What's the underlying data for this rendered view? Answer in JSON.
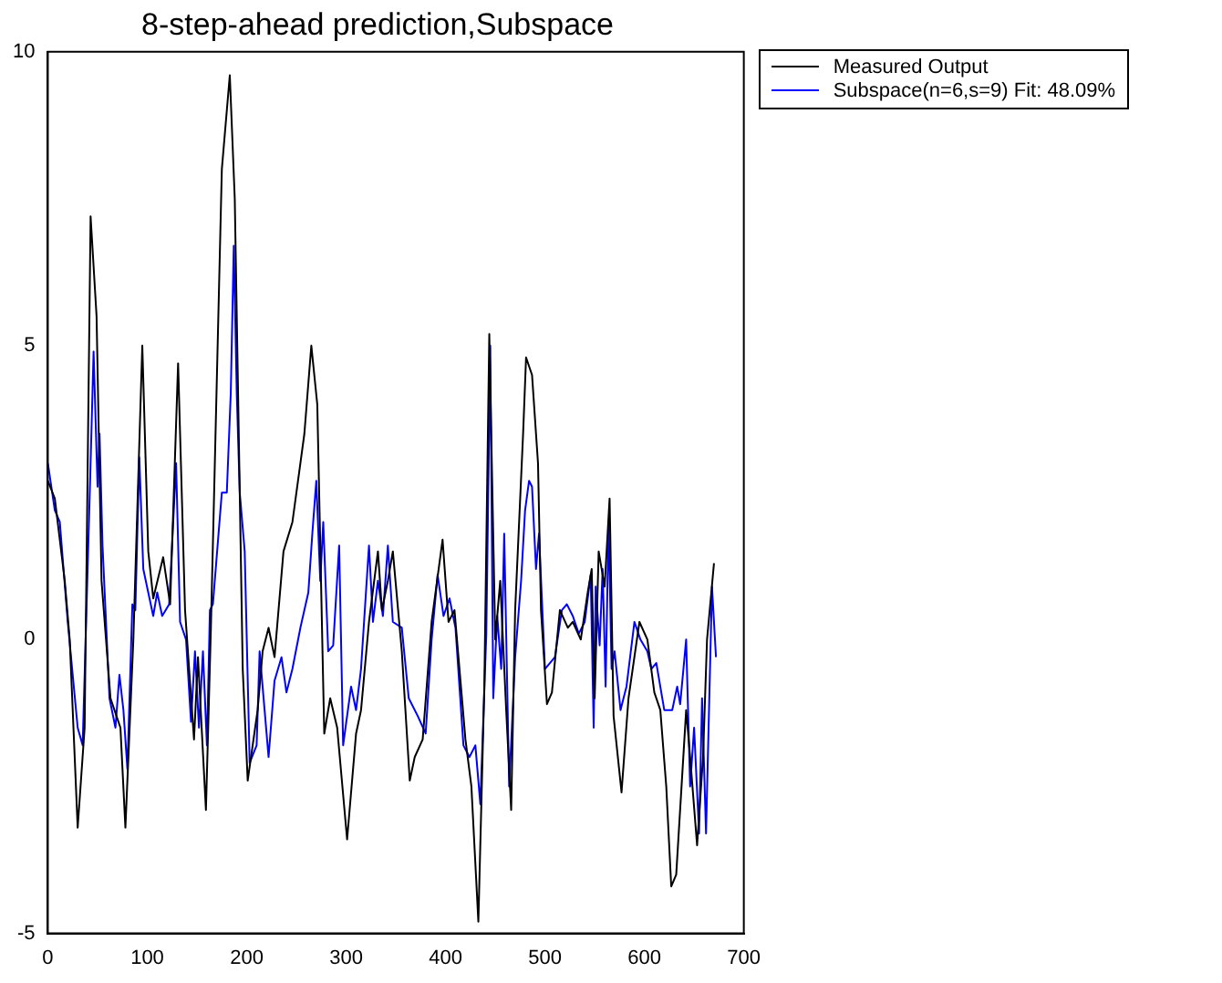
{
  "chart_data": {
    "type": "line",
    "title": "8-step-ahead prediction,Subspace",
    "xlim": [
      0,
      700
    ],
    "xticks": [
      0,
      100,
      200,
      300,
      400,
      500,
      600,
      700
    ],
    "ylim": [
      -5,
      10
    ],
    "yticks": [
      -5,
      0,
      5,
      10
    ],
    "grid": false,
    "legend": "top right",
    "marker": "none",
    "line_style": "solid",
    "series": [
      {
        "name": "Measured Output",
        "color": "#000000",
        "x": [
          0,
          7,
          17,
          22,
          30,
          37,
          43,
          49,
          54,
          63,
          69,
          73,
          78,
          86,
          95,
          101,
          106,
          116,
          123,
          131,
          138,
          147,
          151,
          159,
          164,
          175,
          183,
          188,
          196,
          201,
          211,
          216,
          222,
          228,
          237,
          246,
          258,
          265,
          271,
          278,
          284,
          291,
          301,
          310,
          315,
          323,
          332,
          336,
          342,
          347,
          356,
          364,
          369,
          377,
          386,
          397,
          403,
          409,
          420,
          426,
          433,
          439,
          444,
          450,
          455,
          461,
          466,
          470,
          478,
          481,
          487,
          493,
          496,
          502,
          507,
          515,
          523,
          528,
          536,
          543,
          547,
          550,
          554,
          560,
          565,
          569,
          577,
          584,
          595,
          603,
          610,
          616,
          622,
          627,
          632,
          642,
          646,
          653,
          659,
          663,
          670
        ],
        "values": [
          2.7,
          2.4,
          1.0,
          0,
          -3.2,
          -1.5,
          7.2,
          5.5,
          1.0,
          -1.0,
          -1.3,
          -1.5,
          -3.2,
          0,
          5.0,
          1.5,
          0.7,
          1.4,
          0.6,
          4.7,
          0.5,
          -1.7,
          -0.3,
          -2.9,
          0.2,
          8.0,
          9.6,
          7.5,
          -0.5,
          -2.4,
          -1.2,
          -0.2,
          0.2,
          -0.3,
          1.5,
          2.0,
          3.5,
          5.0,
          4.0,
          -1.6,
          -1.0,
          -1.5,
          -3.4,
          -1.6,
          -1.2,
          0.3,
          1.5,
          0.5,
          1.0,
          1.5,
          -0.2,
          -2.4,
          -2.0,
          -1.7,
          0.3,
          1.7,
          0.3,
          0.5,
          -1.7,
          -2.5,
          -4.8,
          -0.8,
          5.2,
          0.0,
          1.0,
          -1.2,
          -2.9,
          0.5,
          3.5,
          4.8,
          4.5,
          3.0,
          0.5,
          -1.1,
          -0.9,
          0.5,
          0.2,
          0.3,
          0.0,
          0.8,
          1.2,
          -1.0,
          1.5,
          0.9,
          2.4,
          -1.3,
          -2.6,
          -1.0,
          0.3,
          0.0,
          -0.9,
          -1.2,
          -2.5,
          -4.2,
          -4.0,
          -1.2,
          -2.0,
          -3.5,
          -2.0,
          0.0,
          1.3
        ]
      },
      {
        "name": "Subspace(n=6,s=9) Fit: 48.09%",
        "color": "#0000ff",
        "x": [
          0,
          7,
          12,
          20,
          30,
          35,
          43,
          46,
          50,
          52,
          55,
          62,
          68,
          72,
          76,
          80,
          85,
          88,
          92,
          96,
          101,
          106,
          110,
          115,
          122,
          129,
          133,
          139,
          144,
          148,
          152,
          156,
          160,
          163,
          166,
          175,
          180,
          184,
          187,
          190,
          193,
          198,
          203,
          210,
          213,
          218,
          222,
          228,
          235,
          240,
          246,
          254,
          262,
          266,
          270,
          274,
          277,
          282,
          287,
          293,
          297,
          305,
          310,
          315,
          323,
          327,
          332,
          337,
          342,
          347,
          356,
          363,
          372,
          380,
          386,
          392,
          398,
          404,
          410,
          418,
          424,
          430,
          435,
          441,
          445,
          448,
          452,
          456,
          459,
          464,
          470,
          476,
          480,
          484,
          487,
          491,
          494,
          500,
          505,
          510,
          517,
          522,
          528,
          534,
          540,
          546,
          549,
          551,
          555,
          558,
          561,
          564,
          567,
          570,
          576,
          582,
          590,
          596,
          603,
          607,
          612,
          620,
          628,
          633,
          636,
          642,
          646,
          650,
          655,
          658,
          662,
          668,
          672
        ],
        "values": [
          3.0,
          2.2,
          2.0,
          0.3,
          -1.5,
          -1.8,
          3.0,
          4.9,
          2.6,
          3.5,
          1.6,
          -1.0,
          -1.5,
          -0.6,
          -1.2,
          -2.2,
          0.6,
          0.5,
          3.1,
          1.2,
          0.8,
          0.4,
          0.8,
          0.4,
          0.6,
          3.0,
          0.3,
          0.0,
          -1.4,
          -0.2,
          -1.5,
          -0.2,
          -1.8,
          0.5,
          0.6,
          2.5,
          2.5,
          4.2,
          6.7,
          4.2,
          2.5,
          1.5,
          -2.1,
          -1.8,
          -0.2,
          -1.2,
          -2.0,
          -0.7,
          -0.3,
          -0.9,
          -0.5,
          0.2,
          0.8,
          1.8,
          2.7,
          1.0,
          2.0,
          -0.2,
          -0.1,
          1.6,
          -1.8,
          -0.8,
          -1.2,
          -0.5,
          1.6,
          0.3,
          1.0,
          0.4,
          1.6,
          0.3,
          0.2,
          -1.0,
          -1.3,
          -1.6,
          0.0,
          1.1,
          0.4,
          0.7,
          0.2,
          -1.8,
          -2.0,
          -1.8,
          -2.8,
          0.1,
          5.0,
          -1.0,
          0.4,
          -0.5,
          1.8,
          -2.5,
          -0.3,
          1.0,
          2.2,
          2.7,
          2.6,
          1.2,
          1.8,
          -0.5,
          -0.4,
          -0.3,
          0.5,
          0.6,
          0.4,
          0.1,
          0.3,
          1.1,
          -1.5,
          0.9,
          -0.1,
          1.2,
          -0.8,
          2.0,
          -0.5,
          -0.2,
          -1.2,
          -0.8,
          0.3,
          0.0,
          -0.2,
          -0.5,
          -0.4,
          -1.2,
          -1.2,
          -0.8,
          -1.1,
          0.0,
          -2.5,
          -1.5,
          -3.3,
          -1.0,
          -3.3,
          0.9,
          -0.3
        ]
      }
    ]
  }
}
